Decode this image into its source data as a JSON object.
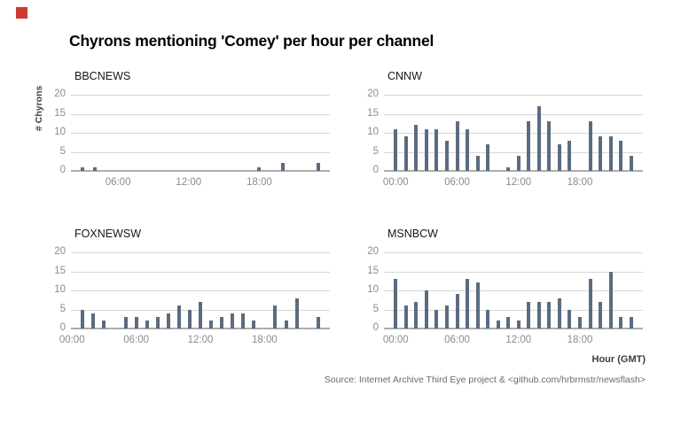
{
  "title": "Chyrons mentioning 'Comey' per hour per channel",
  "y_axis_title": "# Chyrons",
  "x_axis_title": "Hour (GMT)",
  "source": "Source: Internet Archive Third Eye project & <github.com/hrbrmstr/newsflash>",
  "colors": {
    "bar": "#5b6c80",
    "marker_red": "#cc3b33",
    "gridline": "#d7d7d7",
    "axis_line": "#adadad",
    "tick_text": "#8b8b8b"
  },
  "y_ticks": [
    0,
    5,
    10,
    15,
    20
  ],
  "x_ticks": [
    {
      "hour": 0,
      "label": "00:00"
    },
    {
      "hour": 6,
      "label": "06:00"
    },
    {
      "hour": 12,
      "label": "12:00"
    },
    {
      "hour": 18,
      "label": "18:00"
    }
  ],
  "chart_data": [
    {
      "type": "bar",
      "title": "BBCNEWS",
      "xlabel": "Hour (GMT)",
      "ylabel": "# Chyrons",
      "ylim": [
        0,
        20
      ],
      "x": [
        3,
        4,
        18,
        20,
        23
      ],
      "values": [
        1,
        1,
        1,
        2,
        2
      ]
    },
    {
      "type": "bar",
      "title": "CNNW",
      "xlabel": "Hour (GMT)",
      "ylabel": "# Chyrons",
      "ylim": [
        0,
        20
      ],
      "x": [
        0,
        1,
        2,
        3,
        4,
        5,
        6,
        7,
        8,
        9,
        11,
        12,
        13,
        14,
        15,
        16,
        17,
        19,
        20,
        21,
        22,
        23
      ],
      "values": [
        11,
        9,
        12,
        11,
        11,
        8,
        13,
        11,
        4,
        7,
        1,
        4,
        13,
        17,
        13,
        7,
        8,
        13,
        9,
        9,
        8,
        4
      ]
    },
    {
      "type": "bar",
      "title": "FOXNEWSW",
      "xlabel": "Hour (GMT)",
      "ylabel": "# Chyrons",
      "ylim": [
        0,
        20
      ],
      "x": [
        1,
        2,
        3,
        5,
        6,
        7,
        8,
        9,
        10,
        11,
        12,
        13,
        14,
        15,
        16,
        17,
        19,
        20,
        21,
        23
      ],
      "values": [
        5,
        4,
        2,
        3,
        3,
        2,
        3,
        4,
        6,
        5,
        7,
        2,
        3,
        4,
        4,
        2,
        6,
        2,
        8,
        3
      ]
    },
    {
      "type": "bar",
      "title": "MSNBCW",
      "xlabel": "Hour (GMT)",
      "ylabel": "# Chyrons",
      "ylim": [
        0,
        20
      ],
      "x": [
        0,
        1,
        2,
        3,
        4,
        5,
        6,
        7,
        8,
        9,
        10,
        11,
        12,
        13,
        14,
        15,
        16,
        17,
        18,
        19,
        20,
        21,
        22,
        23
      ],
      "values": [
        13,
        6,
        7,
        10,
        5,
        6,
        9,
        13,
        12,
        5,
        2,
        3,
        2,
        7,
        7,
        7,
        8,
        5,
        3,
        13,
        7,
        15,
        3,
        3
      ]
    }
  ]
}
